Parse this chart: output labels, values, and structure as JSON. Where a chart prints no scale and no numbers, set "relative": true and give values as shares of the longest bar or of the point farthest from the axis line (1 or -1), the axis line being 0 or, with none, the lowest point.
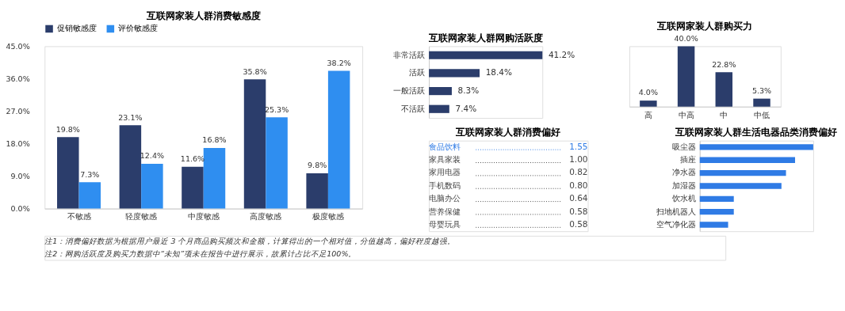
{
  "chart_data": [
    {
      "type": "bar",
      "title": "互联网家装人群消费敏感度",
      "categories": [
        "不敏感",
        "轻度敏感",
        "中度敏感",
        "高度敏感",
        "极度敏感"
      ],
      "series": [
        {
          "name": "促销敏感度",
          "color": "#2b3d6b",
          "values": [
            19.8,
            23.1,
            11.6,
            35.8,
            9.8
          ],
          "value_labels": [
            "19.8%",
            "23.1%",
            "11.6%",
            "35.8%",
            "9.8%"
          ]
        },
        {
          "name": "评价敏感度",
          "color": "#2f8ef0",
          "values": [
            7.3,
            12.4,
            16.8,
            25.3,
            38.2
          ],
          "value_labels": [
            "7.3%",
            "12.4%",
            "16.8%",
            "25.3%",
            "38.2%"
          ]
        }
      ],
      "ylim": [
        0,
        45
      ],
      "yticks": [
        {
          "value": 0,
          "label": "0.0%"
        },
        {
          "value": 9,
          "label": "9.0%"
        },
        {
          "value": 18,
          "label": "18.0%"
        },
        {
          "value": 27,
          "label": "27.0%"
        },
        {
          "value": 36,
          "label": "36.0%"
        },
        {
          "value": 45,
          "label": "45.0%"
        }
      ],
      "legend": "top",
      "grid": false,
      "annotations": [
        "注1：消费偏好数据为根据用户最近 3 个月商品购买频次和金额，计算得出的一个相对值，分值越高，偏好程度越强。",
        "注2：网购活跃度及购买力数据中“未知”项未在报告中进行展示，故累计占比不足100%。"
      ]
    },
    {
      "type": "bar",
      "title": "互联网家装人群网购活跃度",
      "orientation": "horizontal",
      "categories": [
        "非常活跃",
        "活跃",
        "一般活跃",
        "不活跃"
      ],
      "values": [
        41.2,
        18.4,
        8.3,
        7.4
      ],
      "color": "#2b3d6b",
      "value_labels": [
        "41.2%",
        "18.4%",
        "8.3%",
        "7.4%"
      ]
    },
    {
      "type": "bar",
      "title": "互联网家装人群购买力",
      "categories": [
        "高",
        "中高",
        "中",
        "中低"
      ],
      "values": [
        4.0,
        40.0,
        22.8,
        5.3
      ],
      "color": "#2b3d6b",
      "value_labels": [
        "4.0%",
        "40.0%",
        "22.8%",
        "5.3%"
      ]
    },
    {
      "type": "other",
      "title": "互联网家装人群消费偏好",
      "categories": [
        "食品饮料",
        "家具家装",
        "家用电器",
        "手机数码",
        "电脑办公",
        "营养保健",
        "母婴玩具"
      ],
      "values": [
        1.55,
        1.0,
        0.82,
        0.8,
        0.64,
        0.58,
        0.58
      ],
      "value_labels": [
        "1.55",
        "1.00",
        "0.82",
        "0.80",
        "0.64",
        "0.58",
        "0.58"
      ],
      "colors": [
        "#2f7be5",
        "#444444",
        "#444444",
        "#444444",
        "#444444",
        "#444444",
        "#444444"
      ]
    },
    {
      "type": "bar",
      "title": "互联网家装人群生活电器品类消费偏好",
      "orientation": "horizontal",
      "relative": true,
      "categories": [
        "吸尘器",
        "插座",
        "净水器",
        "加湿器",
        "饮水机",
        "扫地机器人",
        "空气净化器"
      ],
      "values": [
        1,
        0.84,
        0.76,
        0.72,
        0.3,
        0.3,
        0.25
      ],
      "color": "#2f7be5"
    }
  ]
}
